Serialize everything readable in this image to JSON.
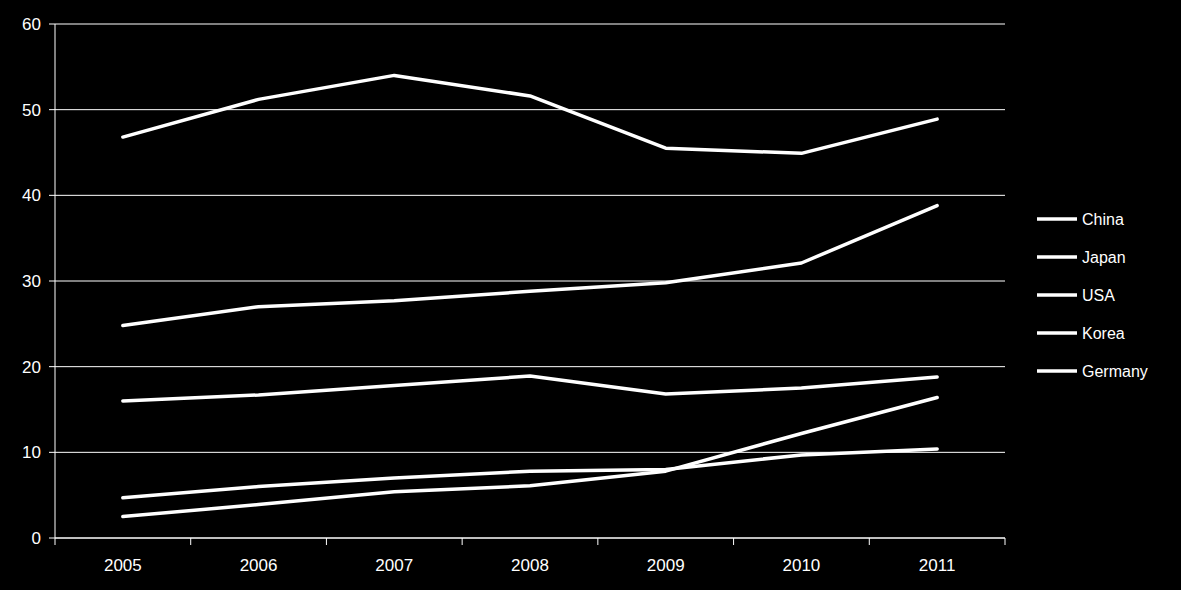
{
  "chart_data": {
    "type": "line",
    "categories": [
      "2005",
      "2006",
      "2007",
      "2008",
      "2009",
      "2010",
      "2011"
    ],
    "series": [
      {
        "name": "China",
        "color": "#ffffff",
        "values": [
          46.8,
          51.2,
          54.0,
          51.6,
          45.5,
          44.9,
          48.9
        ]
      },
      {
        "name": "Japan",
        "color": "#ffffff",
        "values": [
          24.8,
          27.0,
          27.7,
          28.8,
          29.8,
          32.1,
          38.8
        ]
      },
      {
        "name": "USA",
        "color": "#ffffff",
        "values": [
          16.0,
          16.7,
          17.8,
          18.9,
          16.8,
          17.5,
          18.8
        ]
      },
      {
        "name": "Korea",
        "color": "#ffffff",
        "values": [
          2.5,
          3.9,
          5.4,
          6.1,
          7.8,
          12.2,
          16.4
        ]
      },
      {
        "name": "Germany",
        "color": "#ffffff",
        "values": [
          4.7,
          6.0,
          7.0,
          7.8,
          8.0,
          9.7,
          10.4
        ]
      }
    ],
    "ylim": [
      0,
      60
    ],
    "yticks": [
      0,
      10,
      20,
      30,
      40,
      50,
      60
    ],
    "grid": true,
    "legend": "right"
  }
}
